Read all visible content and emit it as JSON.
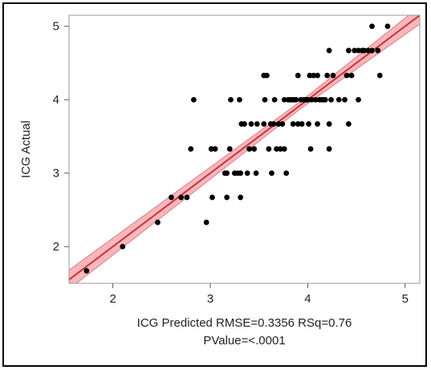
{
  "chart_data": {
    "type": "scatter",
    "xlabel": "ICG Predicted RMSE=0.3356 RSq=0.76",
    "xlabel_line2": "PValue=<.0001",
    "ylabel": "ICG Actual",
    "xlim": [
      1.55,
      5.15
    ],
    "ylim": [
      1.5,
      5.15
    ],
    "x_ticks": [
      "2",
      "3",
      "4",
      "5"
    ],
    "y_ticks": [
      "2",
      "3",
      "4",
      "5"
    ],
    "grid": false,
    "legend": "none",
    "colors": {
      "points": "#000000",
      "fit_line": "#c8323c",
      "confidence_band": "#f3a0a6",
      "axes": "#9a9a9a"
    },
    "fit_line": {
      "x": [
        1.55,
        5.15
      ],
      "y": [
        1.55,
        5.15
      ]
    },
    "confidence_band": {
      "x": [
        1.55,
        3.95,
        5.15
      ],
      "y_low": [
        1.42,
        3.9,
        5.03
      ],
      "y_high": [
        1.68,
        4.0,
        5.27
      ]
    },
    "points": [
      [
        1.73,
        1.67
      ],
      [
        2.1,
        2.0
      ],
      [
        2.46,
        2.33
      ],
      [
        2.6,
        2.67
      ],
      [
        2.7,
        2.67
      ],
      [
        2.76,
        2.67
      ],
      [
        2.8,
        3.33
      ],
      [
        2.83,
        4.0
      ],
      [
        2.96,
        2.33
      ],
      [
        3.01,
        3.33
      ],
      [
        3.05,
        3.33
      ],
      [
        3.02,
        2.67
      ],
      [
        3.15,
        3.0
      ],
      [
        3.17,
        3.0
      ],
      [
        3.2,
        3.33
      ],
      [
        3.17,
        2.67
      ],
      [
        3.21,
        4.0
      ],
      [
        3.25,
        3.0
      ],
      [
        3.28,
        3.0
      ],
      [
        3.31,
        3.0
      ],
      [
        3.32,
        3.67
      ],
      [
        3.35,
        3.67
      ],
      [
        3.31,
        2.67
      ],
      [
        3.3,
        4.0
      ],
      [
        3.38,
        3.0
      ],
      [
        3.4,
        3.33
      ],
      [
        3.42,
        3.67
      ],
      [
        3.45,
        3.33
      ],
      [
        3.47,
        3.0
      ],
      [
        3.48,
        3.67
      ],
      [
        3.55,
        3.67
      ],
      [
        3.55,
        4.33
      ],
      [
        3.58,
        4.33
      ],
      [
        3.56,
        4.0
      ],
      [
        3.62,
        3.67
      ],
      [
        3.6,
        3.33
      ],
      [
        3.65,
        3.67
      ],
      [
        3.63,
        3.0
      ],
      [
        3.66,
        4.0
      ],
      [
        3.68,
        3.33
      ],
      [
        3.7,
        3.67
      ],
      [
        3.72,
        3.33
      ],
      [
        3.74,
        3.67
      ],
      [
        3.76,
        4.0
      ],
      [
        3.76,
        3.33
      ],
      [
        3.78,
        3.0
      ],
      [
        3.8,
        4.0
      ],
      [
        3.82,
        4.0
      ],
      [
        3.84,
        4.0
      ],
      [
        3.86,
        4.0
      ],
      [
        3.88,
        4.0
      ],
      [
        3.85,
        3.67
      ],
      [
        3.9,
        3.67
      ],
      [
        3.9,
        4.33
      ],
      [
        3.93,
        4.0
      ],
      [
        3.94,
        3.67
      ],
      [
        3.96,
        4.0
      ],
      [
        3.98,
        4.0
      ],
      [
        4.0,
        4.0
      ],
      [
        4.02,
        4.33
      ],
      [
        4.01,
        3.67
      ],
      [
        4.03,
        3.33
      ],
      [
        4.04,
        4.0
      ],
      [
        4.06,
        4.33
      ],
      [
        4.08,
        4.0
      ],
      [
        4.1,
        4.33
      ],
      [
        4.1,
        3.67
      ],
      [
        4.12,
        4.0
      ],
      [
        4.14,
        4.0
      ],
      [
        4.16,
        4.0
      ],
      [
        4.18,
        4.0
      ],
      [
        4.2,
        4.33
      ],
      [
        4.22,
        4.67
      ],
      [
        4.22,
        3.67
      ],
      [
        4.22,
        3.33
      ],
      [
        4.24,
        4.0
      ],
      [
        4.26,
        4.33
      ],
      [
        4.32,
        4.0
      ],
      [
        4.38,
        4.0
      ],
      [
        4.4,
        4.33
      ],
      [
        4.42,
        3.67
      ],
      [
        4.45,
        4.33
      ],
      [
        4.42,
        4.67
      ],
      [
        4.48,
        4.67
      ],
      [
        4.52,
        4.67
      ],
      [
        4.52,
        4.0
      ],
      [
        4.56,
        4.67
      ],
      [
        4.58,
        4.67
      ],
      [
        4.62,
        4.67
      ],
      [
        4.66,
        5.0
      ],
      [
        4.66,
        4.67
      ],
      [
        4.72,
        4.67
      ],
      [
        4.74,
        4.33
      ],
      [
        4.82,
        5.0
      ]
    ]
  }
}
